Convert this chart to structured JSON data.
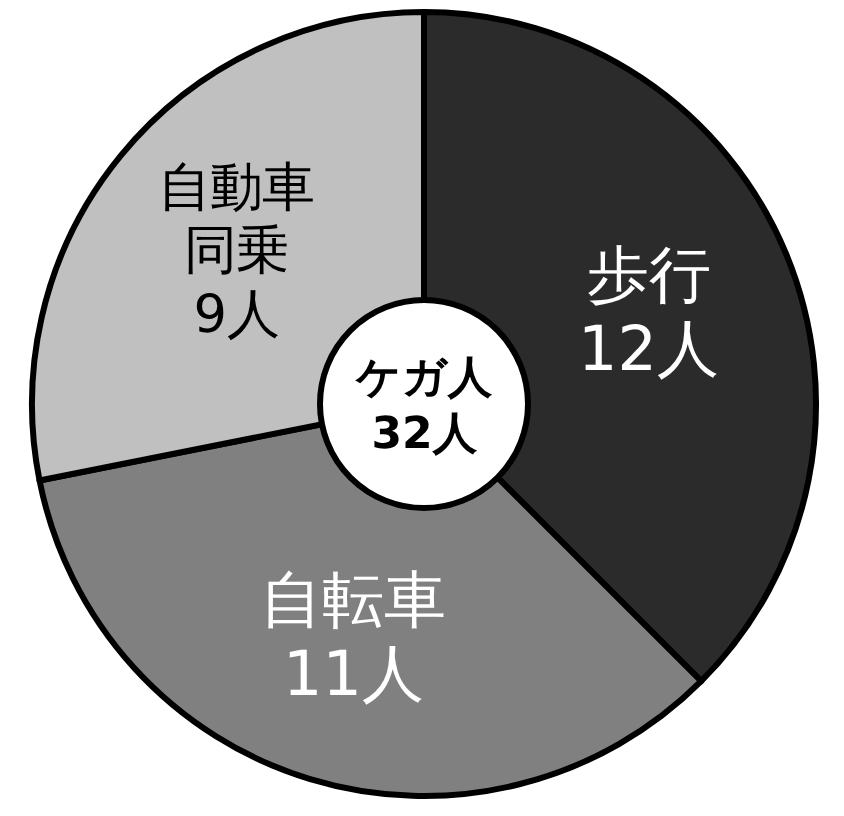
{
  "chart_data": {
    "type": "donut",
    "categories": [
      "歩行",
      "自転車",
      "自動車同乗"
    ],
    "values": [
      12,
      11,
      9
    ],
    "value_labels": [
      "12人",
      "11人",
      "9人"
    ],
    "colors": [
      "#2b2b2b",
      "#808080",
      "#c0c0c0"
    ],
    "annotations": [
      "ケガ人",
      "32人"
    ]
  }
}
